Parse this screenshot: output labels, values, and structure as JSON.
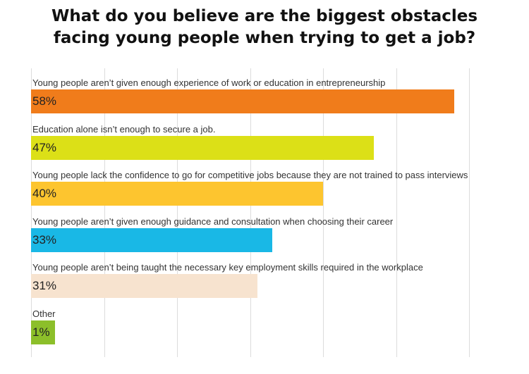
{
  "chart_data": {
    "type": "bar",
    "orientation": "horizontal",
    "title_lines": [
      "What do you believe are the biggest obstacles",
      "facing young people when trying to get a job?"
    ],
    "categories": [
      "Young people aren’t given enough experience of work or education in entrepreneurship",
      "Education alone isn’t enough to secure a job.",
      "Young people lack the confidence to go for competitive jobs because they are not trained to pass interviews",
      "Young people aren’t given enough guidance and consultation when choosing their career",
      "Young people aren’t being taught the necessary key employment skills required in the workplace",
      "Other"
    ],
    "values": [
      58,
      47,
      40,
      33,
      31,
      1
    ],
    "value_labels": [
      "58%",
      "47%",
      "40%",
      "33%",
      "31%",
      "1%"
    ],
    "colors": [
      "#f07c1b",
      "#dce017",
      "#fdc52f",
      "#19b8e6",
      "#f7e3cf",
      "#8cbf2a"
    ],
    "xlim": [
      0,
      60
    ],
    "grid": true
  }
}
